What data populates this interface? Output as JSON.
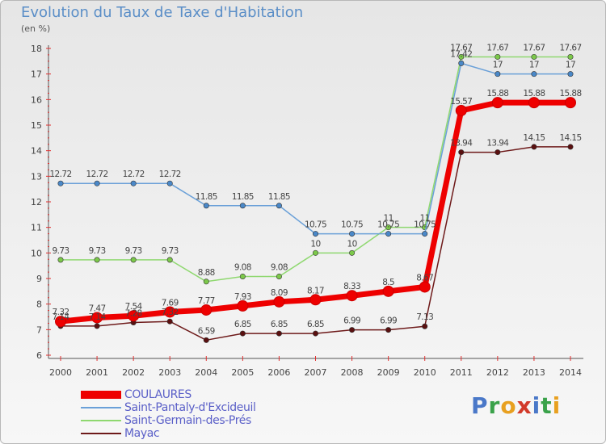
{
  "title": "Evolution du Taux de Taxe d'Habitation",
  "subtitle": "(en %)",
  "logo": {
    "text": "Proxiti",
    "letters": [
      {
        "ch": "P",
        "color": "#4a78c8"
      },
      {
        "ch": "r",
        "color": "#3aa24a"
      },
      {
        "ch": "o",
        "color": "#e8a020"
      },
      {
        "ch": "x",
        "color": "#d23a2a"
      },
      {
        "ch": "i",
        "color": "#4a78c8"
      },
      {
        "ch": "t",
        "color": "#3aa24a"
      },
      {
        "ch": "i",
        "color": "#e8a020"
      }
    ]
  },
  "chart_data": {
    "type": "line",
    "title": "Evolution du Taux de Taxe d'Habitation",
    "ylabel": "(en %)",
    "xlabel": "",
    "x": [
      2000,
      2001,
      2002,
      2003,
      2004,
      2005,
      2006,
      2007,
      2008,
      2009,
      2010,
      2011,
      2012,
      2013,
      2014
    ],
    "ylim": [
      6,
      18
    ],
    "yticks": [
      6,
      7,
      8,
      9,
      10,
      11,
      12,
      13,
      14,
      15,
      16,
      17,
      18
    ],
    "grid": false,
    "legend_position": "bottom-left",
    "series": [
      {
        "name": "Mayac",
        "color": "#6e1a1a",
        "marker_fill": "#5a1010",
        "values": [
          7.14,
          7.14,
          7.28,
          7.32,
          6.59,
          6.85,
          6.85,
          6.85,
          6.99,
          6.99,
          7.13,
          13.94,
          13.94,
          14.15,
          14.15
        ],
        "labels": [
          "7.14",
          "7.14",
          "7.28",
          "7.32",
          "6.59",
          "6.85",
          "6.85",
          "6.85",
          "6.99",
          "6.99",
          "7.13",
          "13.94",
          "13.94",
          "14.15",
          "14.15"
        ]
      },
      {
        "name": "Saint-Germain-des-Prés",
        "color": "#8fd870",
        "marker_fill": "#7cc84a",
        "values": [
          9.73,
          9.73,
          9.73,
          9.73,
          8.88,
          9.08,
          9.08,
          10,
          10,
          11,
          11,
          17.67,
          17.67,
          17.67,
          17.67
        ],
        "labels": [
          "9.73",
          "9.73",
          "9.73",
          "9.73",
          "8.88",
          "9.08",
          "9.08",
          "10",
          "10",
          "11",
          "11",
          "17.67",
          "17.67",
          "17.67",
          "17.67"
        ]
      },
      {
        "name": "Saint-Pantaly-d'Excideuil",
        "color": "#6aa0d8",
        "marker_fill": "#4a88c8",
        "values": [
          12.72,
          12.72,
          12.72,
          12.72,
          11.85,
          11.85,
          11.85,
          10.75,
          10.75,
          10.75,
          10.75,
          17.42,
          17,
          17,
          17
        ],
        "labels": [
          "12.72",
          "12.72",
          "12.72",
          "12.72",
          "11.85",
          "11.85",
          "11.85",
          "10.75",
          "10.75",
          "10.75",
          "10.75",
          "17.42",
          "17",
          "17",
          "17"
        ]
      },
      {
        "name": "COULAURES",
        "color": "#ee0000",
        "marker_fill": "#ee0000",
        "values": [
          7.32,
          7.47,
          7.54,
          7.69,
          7.77,
          7.93,
          8.09,
          8.17,
          8.33,
          8.5,
          8.67,
          15.57,
          15.88,
          15.88,
          15.88
        ],
        "labels": [
          "7.32",
          "7.47",
          "7.54",
          "7.69",
          "7.77",
          "7.93",
          "8.09",
          "8.17",
          "8.33",
          "8.5",
          "8.67",
          "15.57",
          "15.88",
          "15.88",
          "15.88"
        ]
      }
    ],
    "legend": [
      "COULAURES",
      "Saint-Pantaly-d'Excideuil",
      "Saint-Germain-des-Prés",
      "Mayac"
    ]
  }
}
